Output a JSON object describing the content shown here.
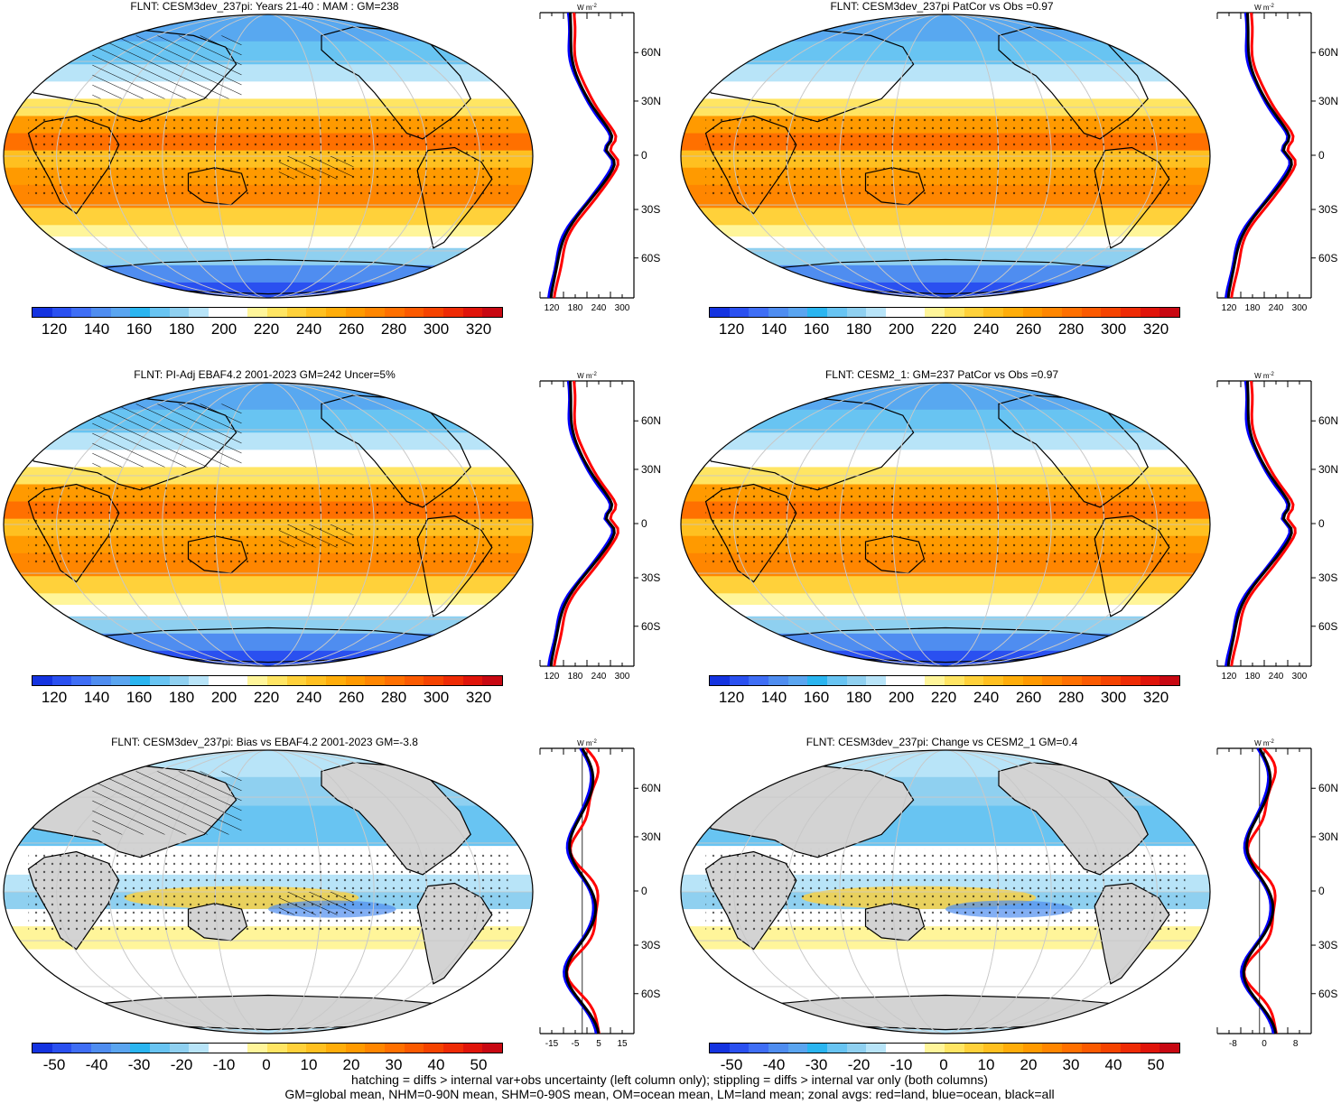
{
  "panels": [
    {
      "title": "FLNT: CESM3dev_237pi: Years 21-40 : MAM : GM=238",
      "scale": "abs",
      "zonal_ticks": [
        "120",
        "180",
        "240",
        "300"
      ],
      "hatch": true,
      "stipple": true
    },
    {
      "title": "FLNT: CESM3dev_237pi PatCor vs Obs =0.97",
      "scale": "abs",
      "zonal_ticks": [
        "120",
        "180",
        "240",
        "300"
      ],
      "hatch": false,
      "stipple": true
    },
    {
      "title": "FLNT: PI-Adj EBAF4.2 2001-2023 GM=242 Uncer=5%",
      "scale": "abs",
      "zonal_ticks": [
        "120",
        "180",
        "240",
        "300"
      ],
      "hatch": true,
      "stipple": true
    },
    {
      "title": "FLNT: CESM2_1: GM=237 PatCor vs Obs =0.97",
      "scale": "abs",
      "zonal_ticks": [
        "120",
        "180",
        "240",
        "300"
      ],
      "hatch": false,
      "stipple": true
    },
    {
      "title": "FLNT: CESM3dev_237pi: Bias vs EBAF4.2 2001-2023 GM=-3.8",
      "scale": "diff",
      "zonal_ticks": [
        "-15",
        "-5",
        "5",
        "15"
      ],
      "hatch": true,
      "stipple": true
    },
    {
      "title": "FLNT: CESM3dev_237pi: Change vs CESM2_1 GM=0.4",
      "scale": "diff",
      "zonal_ticks": [
        "-8",
        "0",
        "8"
      ],
      "hatch": false,
      "stipple": true
    }
  ],
  "abs_colorbar": {
    "labels": [
      "120",
      "140",
      "160",
      "180",
      "200",
      "220",
      "240",
      "260",
      "280",
      "300",
      "320"
    ],
    "colors": [
      "#1433e0",
      "#2a50f0",
      "#3f6ef5",
      "#4f8df0",
      "#5aa5f0",
      "#2ab5f0",
      "#68c4f2",
      "#8fd0f0",
      "#b8e4f8",
      "#ffffff",
      "#ffffff",
      "#fff59a",
      "#ffe563",
      "#ffd13a",
      "#ffc020",
      "#ffad0a",
      "#ff9a00",
      "#ff8600",
      "#ff7000",
      "#fb5a00",
      "#f54300",
      "#ee2b05",
      "#e0140a",
      "#c80812"
    ]
  },
  "diff_colorbar": {
    "labels": [
      "-50",
      "-40",
      "-30",
      "-20",
      "-10",
      "0",
      "10",
      "20",
      "30",
      "40",
      "50"
    ],
    "colors": [
      "#1433e0",
      "#2a50f0",
      "#3f6ef5",
      "#4f8df0",
      "#5aa5f0",
      "#2ab5f0",
      "#68c4f2",
      "#8fd0f0",
      "#b8e4f8",
      "#ffffff",
      "#ffffff",
      "#fff59a",
      "#ffe563",
      "#ffd13a",
      "#ffc020",
      "#ffad0a",
      "#ff9a00",
      "#ff8600",
      "#ff7000",
      "#fb5a00",
      "#f54300",
      "#ee2b05",
      "#e0140a",
      "#c80812"
    ]
  },
  "zonal": {
    "unit": "W m",
    "unit_exp": "-2",
    "lat_labels": [
      "60N",
      "30N",
      "0",
      "30S",
      "60S"
    ]
  },
  "footer": {
    "line1": "hatching = diffs > internal var+obs uncertainty (left column only); stippling = diffs > internal var only (both columns)",
    "line2": "GM=global mean, NHM=0-90N mean, SHM=0-90S mean, OM=ocean mean, LM=land mean; zonal avgs: red=land, blue=ocean, black=all"
  },
  "colors": {
    "land": "#d3d3d3",
    "coast": "#000000",
    "line_land": "#ff0000",
    "line_ocean": "#0000ff",
    "line_all": "#000000"
  }
}
